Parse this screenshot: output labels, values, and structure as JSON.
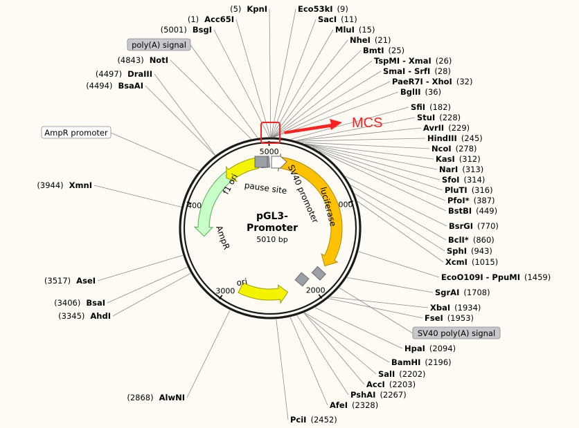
{
  "map": {
    "name_line1": "pGL3-",
    "name_line2": "Promoter",
    "size_label": "5010 bp",
    "total_bp": 5010
  },
  "ticks": [
    {
      "bp": 1000,
      "label": "1000"
    },
    {
      "bp": 2000,
      "label": "2000"
    },
    {
      "bp": 3000,
      "label": "3000"
    },
    {
      "bp": 4000,
      "label": "4000"
    },
    {
      "bp": 5000,
      "label": "5000"
    }
  ],
  "features": [
    {
      "name": "luciferase",
      "label": "luciferase",
      "start": 80,
      "end": 1735,
      "color": "#ffc200",
      "stroke": "#b38800",
      "ring": "inner"
    },
    {
      "name": "sv40-promoter",
      "label": "SV40 promoter",
      "start": 75,
      "end": 120,
      "color": "#ffffff",
      "stroke": "#666666",
      "ring": "inner"
    },
    {
      "name": "ori",
      "label": "ori",
      "start": 2870,
      "end": 2290,
      "color": "#f4f400",
      "stroke": "#999900",
      "ring": "inner"
    },
    {
      "name": "ampr",
      "label": "AmpR",
      "start": 4520,
      "end": 3660,
      "color": "#c8ffc8",
      "stroke": "#55aa55",
      "ring": "inner"
    },
    {
      "name": "f1-ori",
      "label": "f1 ori",
      "start": 4860,
      "end": 4440,
      "color": "#f4f400",
      "stroke": "#999900",
      "ring": "inner"
    }
  ],
  "small_boxes": [
    {
      "name": "pause-site-box",
      "label": "pause site",
      "bp": 4950
    },
    {
      "name": "sv40-polya-box",
      "bp": 1850
    }
  ],
  "mcs": {
    "label": "MCS",
    "color": "#ff2020"
  },
  "boxed_labels": [
    {
      "name": "polya-signal-label",
      "text": "poly(A) signal",
      "fill": "#c8c8cc"
    },
    {
      "name": "ampr-promoter-label",
      "text": "AmpR promoter",
      "fill": "#ffffff"
    },
    {
      "name": "sv40-polya-signal-label",
      "text": "SV40 poly(A) signal",
      "fill": "#c8c8cc"
    }
  ],
  "sites_left": [
    {
      "name": "KpnI",
      "pos": "(5)",
      "bp": 5
    },
    {
      "name": "Acc65I",
      "pos": "(1)",
      "bp": 1
    },
    {
      "name": "BsgI",
      "pos": "(5001)",
      "bp": 5001
    },
    {
      "name": "NotI",
      "pos": "(4843)",
      "bp": 4843
    },
    {
      "name": "DraIII",
      "pos": "(4497)",
      "bp": 4497
    },
    {
      "name": "BsaAI",
      "pos": "(4494)",
      "bp": 4494
    },
    {
      "name": "XmnI",
      "pos": "(3944)",
      "bp": 3944
    },
    {
      "name": "AseI",
      "pos": "(3517)",
      "bp": 3517
    },
    {
      "name": "BsaI",
      "pos": "(3406)",
      "bp": 3406
    },
    {
      "name": "AhdI",
      "pos": "(3345)",
      "bp": 3345
    },
    {
      "name": "AlwNI",
      "pos": "(2868)",
      "bp": 2868
    }
  ],
  "sites_right": [
    {
      "name": "Eco53kI",
      "pos": "(9)",
      "bp": 9
    },
    {
      "name": "SacI",
      "pos": "(11)",
      "bp": 11
    },
    {
      "name": "MluI",
      "pos": "(15)",
      "bp": 15
    },
    {
      "name": "NheI",
      "pos": "(21)",
      "bp": 21
    },
    {
      "name": "BmtI",
      "pos": "(25)",
      "bp": 25
    },
    {
      "name": "TspMI - XmaI",
      "pos": "(26)",
      "bp": 26
    },
    {
      "name": "SmaI - SrfI",
      "pos": "(28)",
      "bp": 28
    },
    {
      "name": "PaeR7I - XhoI",
      "pos": "(32)",
      "bp": 32
    },
    {
      "name": "BglII",
      "pos": "(36)",
      "bp": 36
    },
    {
      "name": "SfiI",
      "pos": "(182)",
      "bp": 182
    },
    {
      "name": "StuI",
      "pos": "(228)",
      "bp": 228
    },
    {
      "name": "AvrII",
      "pos": "(229)",
      "bp": 229
    },
    {
      "name": "HindIII",
      "pos": "(245)",
      "bp": 245
    },
    {
      "name": "NcoI",
      "pos": "(278)",
      "bp": 278
    },
    {
      "name": "KasI",
      "pos": "(312)",
      "bp": 312
    },
    {
      "name": "NarI",
      "pos": "(313)",
      "bp": 313
    },
    {
      "name": "SfoI",
      "pos": "(314)",
      "bp": 314
    },
    {
      "name": "PluTI",
      "pos": "(316)",
      "bp": 316
    },
    {
      "name": "PfoI*",
      "pos": "(387)",
      "bp": 387
    },
    {
      "name": "BstBI",
      "pos": "(449)",
      "bp": 449
    },
    {
      "name": "BsrGI",
      "pos": "(770)",
      "bp": 770
    },
    {
      "name": "BclI*",
      "pos": "(860)",
      "bp": 860
    },
    {
      "name": "SphI",
      "pos": "(943)",
      "bp": 943
    },
    {
      "name": "XcmI",
      "pos": "(1015)",
      "bp": 1015
    },
    {
      "name": "EcoO109I - PpuMI",
      "pos": "(1459)",
      "bp": 1459
    },
    {
      "name": "SgrAI",
      "pos": "(1708)",
      "bp": 1708
    },
    {
      "name": "XbaI",
      "pos": "(1934)",
      "bp": 1934
    },
    {
      "name": "FseI",
      "pos": "(1953)",
      "bp": 1953
    },
    {
      "name": "HpaI",
      "pos": "(2094)",
      "bp": 2094
    },
    {
      "name": "BamHI",
      "pos": "(2196)",
      "bp": 2196
    },
    {
      "name": "SalI",
      "pos": "(2202)",
      "bp": 2202
    },
    {
      "name": "AccI",
      "pos": "(2203)",
      "bp": 2203
    },
    {
      "name": "PshAI",
      "pos": "(2267)",
      "bp": 2267
    },
    {
      "name": "AfeI",
      "pos": "(2328)",
      "bp": 2328
    },
    {
      "name": "PciI",
      "pos": "(2452)",
      "bp": 2452
    }
  ]
}
